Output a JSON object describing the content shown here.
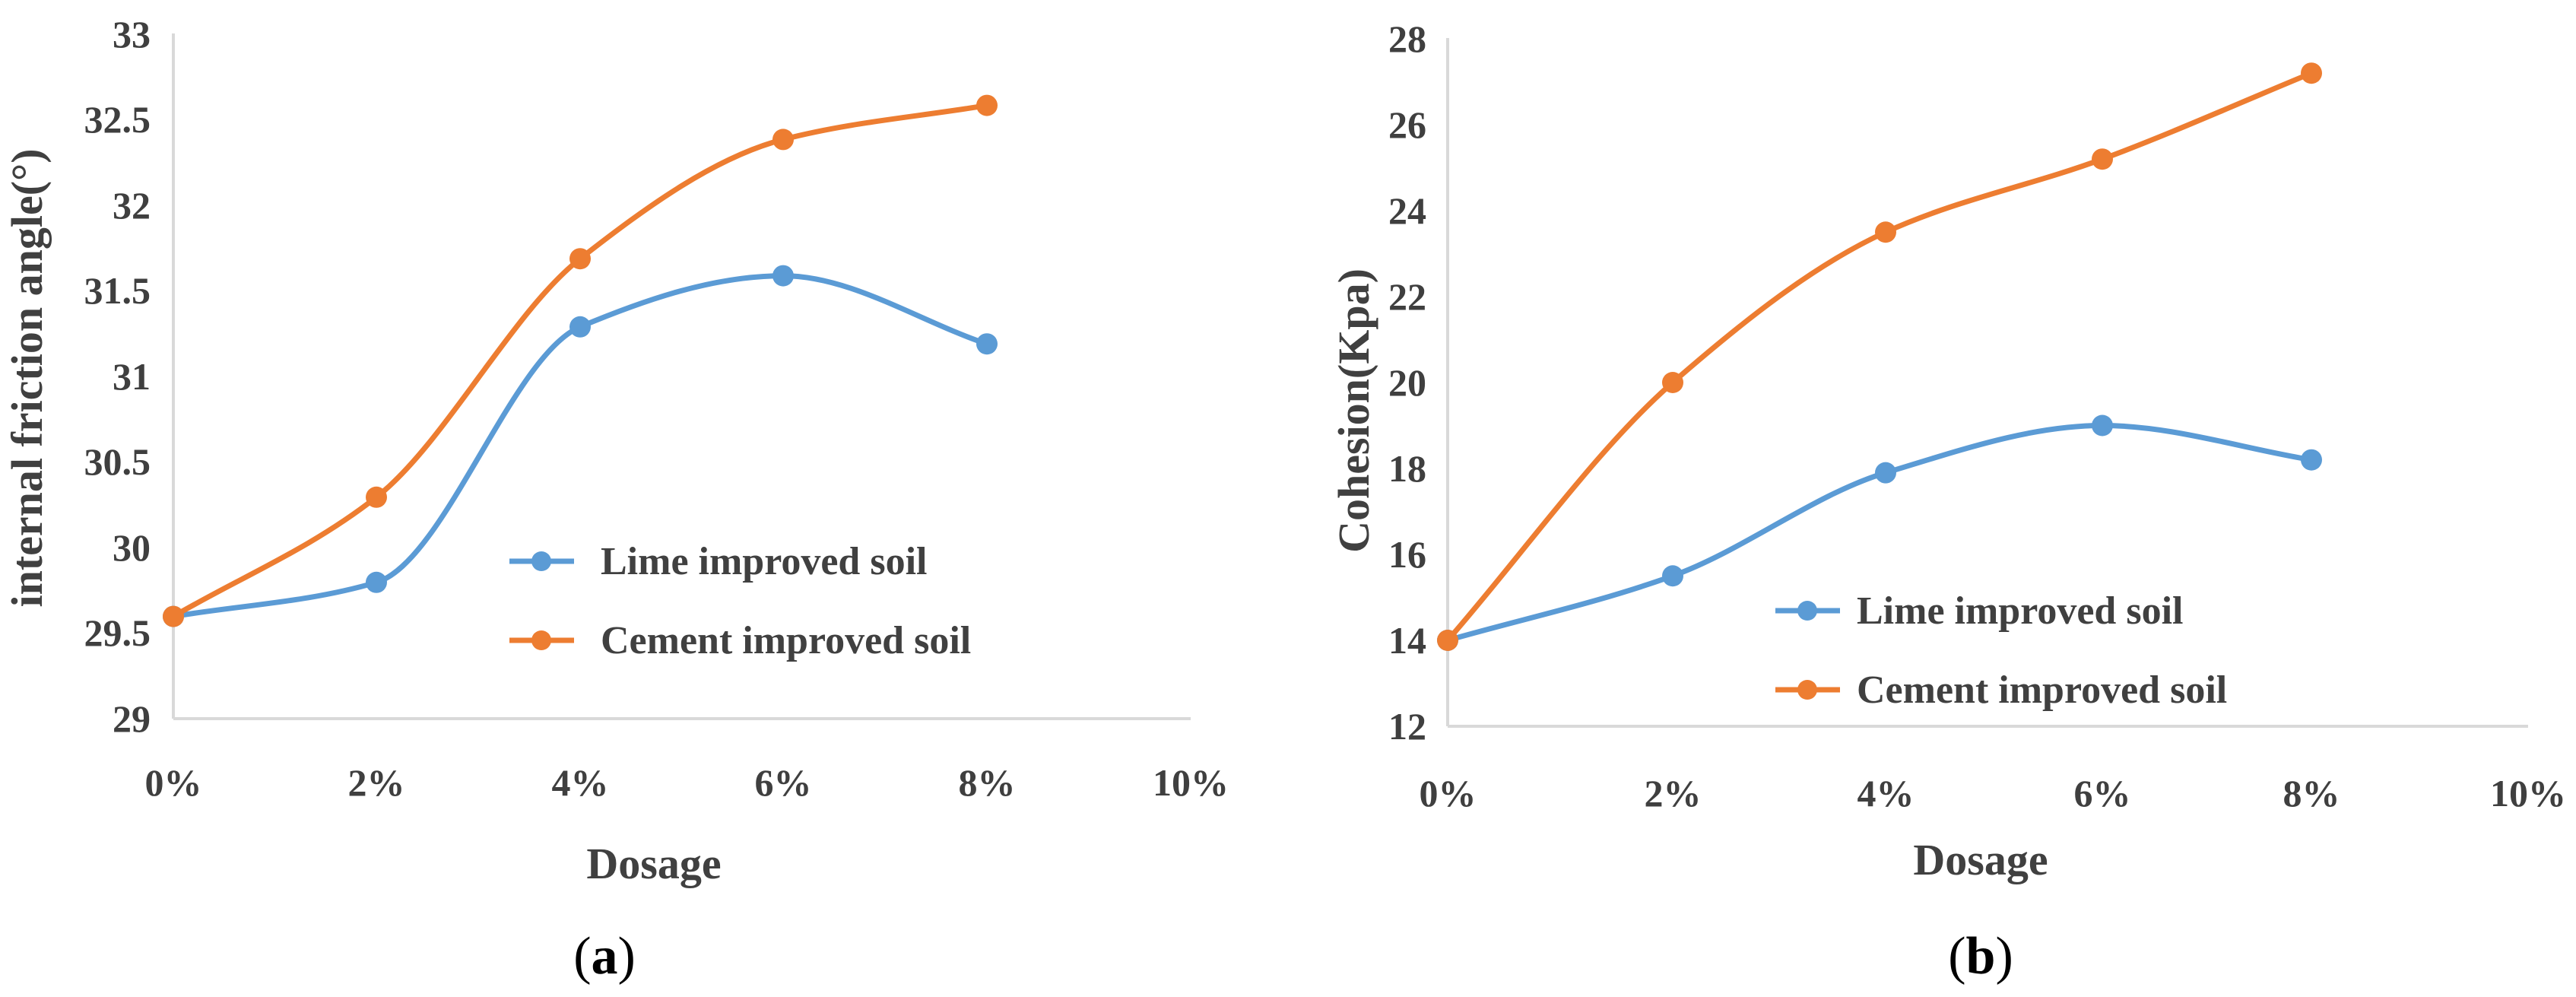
{
  "chart_data": [
    {
      "type": "line",
      "panel_letter": "a",
      "x": [
        "0%",
        "2%",
        "4%",
        "6%",
        "8%"
      ],
      "categories": [
        "0%",
        "2%",
        "4%",
        "6%",
        "8%",
        "10%"
      ],
      "xlabel": "Dosage",
      "ylabel": "internal friction angle(°)",
      "ylim": [
        29,
        33
      ],
      "yticks": [
        "29",
        "29.5",
        "30",
        "30.5",
        "31",
        "31.5",
        "32",
        "32.5",
        "33"
      ],
      "smooth": true,
      "legend_position": "center-right",
      "series": [
        {
          "name": "Lime improved soil",
          "color": "#5b9bd5",
          "values": [
            29.6,
            29.8,
            31.3,
            31.6,
            31.2
          ]
        },
        {
          "name": "Cement improved soil",
          "color": "#ed7d31",
          "values": [
            29.6,
            30.3,
            31.7,
            32.4,
            32.6
          ]
        }
      ]
    },
    {
      "type": "line",
      "panel_letter": "b",
      "x": [
        "0%",
        "2%",
        "4%",
        "6%",
        "8%"
      ],
      "categories": [
        "0%",
        "2%",
        "4%",
        "6%",
        "8%",
        "10%"
      ],
      "xlabel": "Dosage",
      "ylabel": "Cohesion(Kpa)",
      "ylim": [
        12,
        28
      ],
      "yticks": [
        "12",
        "14",
        "16",
        "18",
        "20",
        "22",
        "24",
        "26",
        "28"
      ],
      "smooth": true,
      "legend_position": "bottom-center",
      "series": [
        {
          "name": "Lime improved soil",
          "color": "#5b9bd5",
          "values": [
            14.0,
            15.5,
            17.9,
            19.0,
            18.2
          ]
        },
        {
          "name": "Cement improved soil",
          "color": "#ed7d31",
          "values": [
            14.0,
            20.0,
            23.5,
            25.2,
            27.2
          ]
        }
      ]
    }
  ]
}
